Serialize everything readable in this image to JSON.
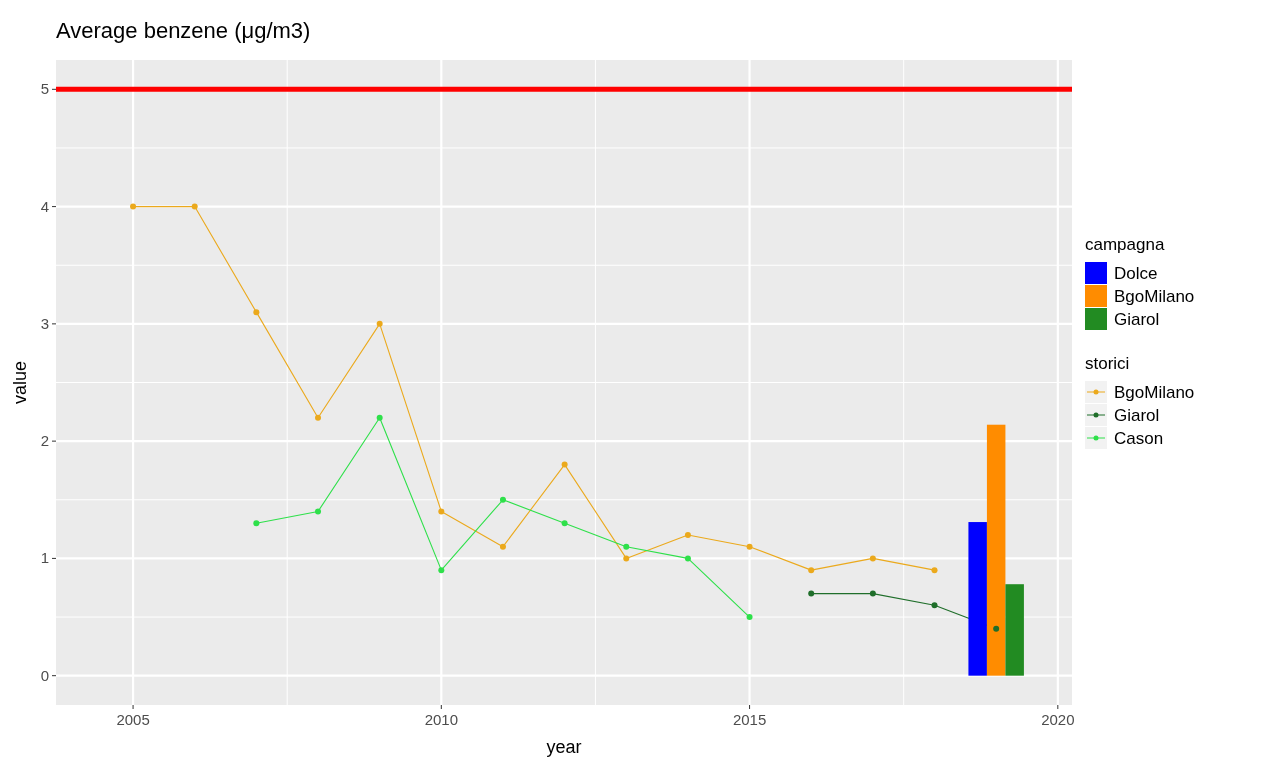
{
  "chart_data": {
    "type": "line",
    "title": "Average benzene (μg/m3)",
    "xlabel": "year",
    "ylabel": "value",
    "xlim": [
      2003.75,
      2020.23
    ],
    "xticks": [
      2005,
      2010,
      2015,
      2020
    ],
    "ylim": [
      -0.25,
      5.25
    ],
    "yticks": [
      0,
      1,
      2,
      3,
      4,
      5
    ],
    "grid": true,
    "legend": "right",
    "legend_title": [
      "campagna",
      "storici"
    ],
    "marker": "circle",
    "ref_lines": [
      {
        "axis": "y",
        "value": 5,
        "color": "#ff0000"
      }
    ],
    "series": [
      {
        "type": "bar",
        "name": "Dolce",
        "color": "#0000ff",
        "x": [
          2019
        ],
        "values": [
          1.31
        ]
      },
      {
        "type": "bar",
        "name": "BgoMilano",
        "color": "#ff8c00",
        "x": [
          2019
        ],
        "values": [
          2.14
        ]
      },
      {
        "type": "bar",
        "name": "Giarol",
        "color": "#228b22",
        "x": [
          2019
        ],
        "values": [
          0.78
        ]
      },
      {
        "name": "BgoMilano",
        "color": "#eba91c",
        "x": [
          2005,
          2006,
          2007,
          2008,
          2009,
          2010,
          2011,
          2012,
          2013,
          2014,
          2015,
          2016,
          2017,
          2018
        ],
        "values": [
          4.0,
          4.0,
          3.1,
          2.2,
          3.0,
          1.4,
          1.1,
          1.8,
          1.0,
          1.2,
          1.1,
          0.9,
          1.0,
          0.9
        ]
      },
      {
        "name": "Giarol",
        "color": "#1f6e2a",
        "x": [
          2016,
          2017,
          2018,
          2019
        ],
        "values": [
          0.7,
          0.7,
          0.6,
          0.4
        ]
      },
      {
        "name": "Cason",
        "color": "#2ee04a",
        "x": [
          2007,
          2008,
          2009,
          2010,
          2011,
          2012,
          2013,
          2014,
          2015
        ],
        "values": [
          1.3,
          1.4,
          2.2,
          0.9,
          1.5,
          1.3,
          1.1,
          1.0,
          0.5
        ]
      }
    ]
  }
}
